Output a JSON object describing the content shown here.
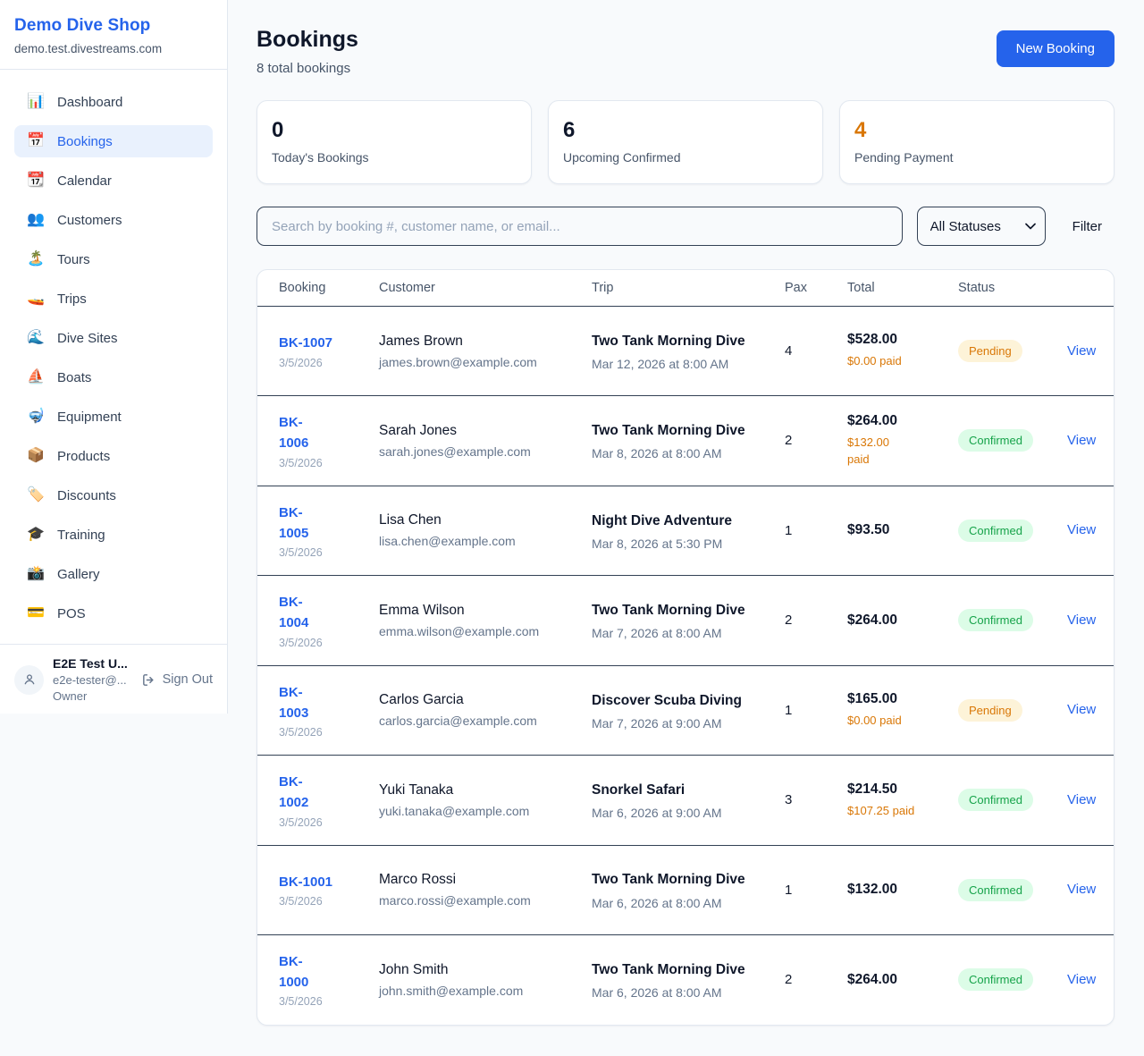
{
  "sidebar": {
    "brand": "Demo Dive Shop",
    "domain": "demo.test.divestreams.com",
    "items": [
      {
        "label": "Dashboard",
        "icon": "dashboard-icon",
        "glyph": "📊",
        "active": false
      },
      {
        "label": "Bookings",
        "icon": "bookings-icon",
        "glyph": "📅",
        "active": true
      },
      {
        "label": "Calendar",
        "icon": "calendar-icon",
        "glyph": "📆",
        "active": false
      },
      {
        "label": "Customers",
        "icon": "customers-icon",
        "glyph": "👥",
        "active": false
      },
      {
        "label": "Tours",
        "icon": "tours-icon",
        "glyph": "🏝️",
        "active": false
      },
      {
        "label": "Trips",
        "icon": "trips-icon",
        "glyph": "🚤",
        "active": false
      },
      {
        "label": "Dive Sites",
        "icon": "dive-sites-icon",
        "glyph": "🌊",
        "active": false
      },
      {
        "label": "Boats",
        "icon": "boats-icon",
        "glyph": "⛵",
        "active": false
      },
      {
        "label": "Equipment",
        "icon": "equipment-icon",
        "glyph": "🤿",
        "active": false
      },
      {
        "label": "Products",
        "icon": "products-icon",
        "glyph": "📦",
        "active": false
      },
      {
        "label": "Discounts",
        "icon": "discounts-icon",
        "glyph": "🏷️",
        "active": false
      },
      {
        "label": "Training",
        "icon": "training-icon",
        "glyph": "🎓",
        "active": false
      },
      {
        "label": "Gallery",
        "icon": "gallery-icon",
        "glyph": "📸",
        "active": false
      },
      {
        "label": "POS",
        "icon": "pos-icon",
        "glyph": "💳",
        "active": false
      }
    ],
    "footer": {
      "name": "E2E Test U...",
      "email": "e2e-tester@...",
      "role": "Owner",
      "sign_out_label": "Sign Out"
    }
  },
  "header": {
    "title": "Bookings",
    "subtitle": "8 total bookings",
    "new_booking_label": "New Booking"
  },
  "stats": [
    {
      "value": "0",
      "label": "Today's Bookings",
      "accent": false
    },
    {
      "value": "6",
      "label": "Upcoming Confirmed",
      "accent": false
    },
    {
      "value": "4",
      "label": "Pending Payment",
      "accent": true
    }
  ],
  "filters": {
    "search_placeholder": "Search by booking #, customer name, or email...",
    "status_selected": "All Statuses",
    "filter_label": "Filter"
  },
  "table": {
    "columns": [
      "Booking",
      "Customer",
      "Trip",
      "Pax",
      "Total",
      "Status"
    ],
    "view_label": "View",
    "rows": [
      {
        "id": "BK-1007",
        "id_wrapped": false,
        "date": "3/5/2026",
        "customer": "James Brown",
        "email": "james.brown@example.com",
        "trip": "Two Tank Morning Dive",
        "trip_datetime": "Mar 12, 2026 at 8:00 AM",
        "pax": "4",
        "total": "$528.00",
        "paid": "$0.00 paid",
        "paid_wrapped": false,
        "status": "Pending"
      },
      {
        "id": "BK-1006",
        "id_wrapped": true,
        "date": "3/5/2026",
        "customer": "Sarah Jones",
        "email": "sarah.jones@example.com",
        "trip": "Two Tank Morning Dive",
        "trip_datetime": "Mar 8, 2026 at 8:00 AM",
        "pax": "2",
        "total": "$264.00",
        "paid": "$132.00 paid",
        "paid_wrapped": true,
        "status": "Confirmed"
      },
      {
        "id": "BK-1005",
        "id_wrapped": true,
        "date": "3/5/2026",
        "customer": "Lisa Chen",
        "email": "lisa.chen@example.com",
        "trip": "Night Dive Adventure",
        "trip_datetime": "Mar 8, 2026 at 5:30 PM",
        "pax": "1",
        "total": "$93.50",
        "paid": null,
        "paid_wrapped": false,
        "status": "Confirmed"
      },
      {
        "id": "BK-1004",
        "id_wrapped": true,
        "date": "3/5/2026",
        "customer": "Emma Wilson",
        "email": "emma.wilson@example.com",
        "trip": "Two Tank Morning Dive",
        "trip_datetime": "Mar 7, 2026 at 8:00 AM",
        "pax": "2",
        "total": "$264.00",
        "paid": null,
        "paid_wrapped": false,
        "status": "Confirmed"
      },
      {
        "id": "BK-1003",
        "id_wrapped": true,
        "date": "3/5/2026",
        "customer": "Carlos Garcia",
        "email": "carlos.garcia@example.com",
        "trip": "Discover Scuba Diving",
        "trip_datetime": "Mar 7, 2026 at 9:00 AM",
        "pax": "1",
        "total": "$165.00",
        "paid": "$0.00 paid",
        "paid_wrapped": false,
        "status": "Pending"
      },
      {
        "id": "BK-1002",
        "id_wrapped": true,
        "date": "3/5/2026",
        "customer": "Yuki Tanaka",
        "email": "yuki.tanaka@example.com",
        "trip": "Snorkel Safari",
        "trip_datetime": "Mar 6, 2026 at 9:00 AM",
        "pax": "3",
        "total": "$214.50",
        "paid": "$107.25 paid",
        "paid_wrapped": false,
        "status": "Confirmed"
      },
      {
        "id": "BK-1001",
        "id_wrapped": false,
        "date": "3/5/2026",
        "customer": "Marco Rossi",
        "email": "marco.rossi@example.com",
        "trip": "Two Tank Morning Dive",
        "trip_datetime": "Mar 6, 2026 at 8:00 AM",
        "pax": "1",
        "total": "$132.00",
        "paid": null,
        "paid_wrapped": false,
        "status": "Confirmed"
      },
      {
        "id": "BK-1000",
        "id_wrapped": true,
        "date": "3/5/2026",
        "customer": "John Smith",
        "email": "john.smith@example.com",
        "trip": "Two Tank Morning Dive",
        "trip_datetime": "Mar 6, 2026 at 8:00 AM",
        "pax": "2",
        "total": "$264.00",
        "paid": null,
        "paid_wrapped": false,
        "status": "Confirmed"
      }
    ]
  },
  "colors": {
    "accent_blue": "#2563eb",
    "pending_text": "#d97706",
    "pending_bg": "#fdf3d8",
    "confirmed_text": "#16a34a",
    "confirmed_bg": "#dcfce7",
    "page_bg": "#f8fafc"
  }
}
